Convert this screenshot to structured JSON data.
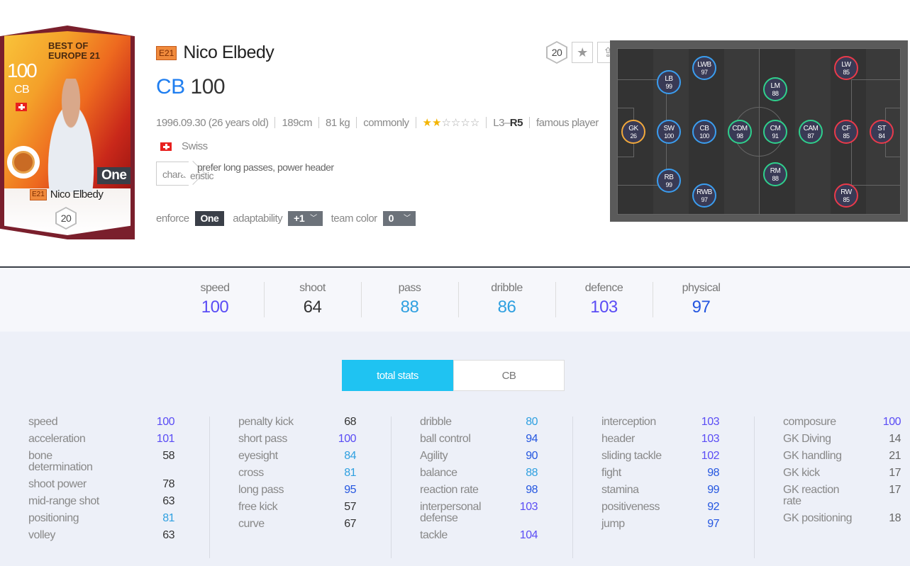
{
  "card": {
    "ovr": "100",
    "position": "CB",
    "title_line1": "BEST OF",
    "title_line2": "EUROPE 21",
    "season_badge": "E21",
    "name": "Nico Elbedy",
    "enforce_badge": "One",
    "level": "20"
  },
  "header": {
    "season_badge": "E21",
    "name": "Nico Elbedy",
    "position": "CB",
    "ovr": "100"
  },
  "tools": {
    "level": "20",
    "favorite_icon": "star-icon",
    "share_icon": "share-icon"
  },
  "meta": {
    "birth": "1996.09.30 (26 years old)",
    "height": "189cm",
    "weight": "81 kg",
    "body_type": "commonly",
    "skill_stars": 2,
    "skill_stars_max": 6,
    "foot_left": "L3",
    "foot_sep": " – ",
    "foot_right": "R5",
    "extra": "famous player"
  },
  "nation": {
    "name": "Swiss"
  },
  "trait": {
    "label": "characteristic",
    "label_line1": "chara",
    "label_line2": "eristic",
    "value": "prefer long passes, power header"
  },
  "options": {
    "enforce_label": "enforce",
    "enforce_value": "One",
    "adapt_label": "adaptability",
    "adapt_value": "+1",
    "teamcolor_label": "team color",
    "teamcolor_value": "0"
  },
  "positions": [
    {
      "pos": "GK",
      "val": "26",
      "group": "gk"
    },
    {
      "pos": "SW",
      "val": "100",
      "group": "def"
    },
    {
      "pos": "LB",
      "val": "99",
      "group": "def"
    },
    {
      "pos": "RB",
      "val": "99",
      "group": "def"
    },
    {
      "pos": "LWB",
      "val": "97",
      "group": "def"
    },
    {
      "pos": "CB",
      "val": "100",
      "group": "def"
    },
    {
      "pos": "RWB",
      "val": "97",
      "group": "def"
    },
    {
      "pos": "CDM",
      "val": "98",
      "group": "mid"
    },
    {
      "pos": "LM",
      "val": "88",
      "group": "mid"
    },
    {
      "pos": "CM",
      "val": "91",
      "group": "mid"
    },
    {
      "pos": "RM",
      "val": "88",
      "group": "mid"
    },
    {
      "pos": "CAM",
      "val": "87",
      "group": "mid"
    },
    {
      "pos": "LW",
      "val": "85",
      "group": "fwd"
    },
    {
      "pos": "CF",
      "val": "85",
      "group": "fwd"
    },
    {
      "pos": "RW",
      "val": "85",
      "group": "fwd"
    },
    {
      "pos": "ST",
      "val": "84",
      "group": "fwd"
    }
  ],
  "group_colors": {
    "gk": "#f2a93b",
    "def": "#3a9ef0",
    "mid": "#2fd08c",
    "fwd": "#ea3a4a"
  },
  "summary": [
    {
      "label": "speed",
      "value": "100"
    },
    {
      "label": "shoot",
      "value": "64"
    },
    {
      "label": "pass",
      "value": "88"
    },
    {
      "label": "dribble",
      "value": "86"
    },
    {
      "label": "defence",
      "value": "103"
    },
    {
      "label": "physical",
      "value": "97"
    }
  ],
  "tabs": [
    {
      "label": "total stats",
      "active": true
    },
    {
      "label": "CB",
      "active": false
    }
  ],
  "stat_colors": {
    "over100": "#5a4cf5",
    "ninety": "#2456e0",
    "eighty": "#2fa0e0",
    "normal": "#333333",
    "gk": "#666666"
  },
  "stats": [
    [
      {
        "name": "speed",
        "value": "100"
      },
      {
        "name": "acceleration",
        "value": "101"
      },
      {
        "name": "bone determination",
        "value": "58"
      },
      {
        "name": "shoot power",
        "value": "78"
      },
      {
        "name": "mid-range shot",
        "value": "63"
      },
      {
        "name": "positioning",
        "value": "81"
      },
      {
        "name": "volley",
        "value": "63"
      }
    ],
    [
      {
        "name": "penalty kick",
        "value": "68"
      },
      {
        "name": "short pass",
        "value": "100"
      },
      {
        "name": "eyesight",
        "value": "84"
      },
      {
        "name": "cross",
        "value": "81"
      },
      {
        "name": "long pass",
        "value": "95"
      },
      {
        "name": "free kick",
        "value": "57"
      },
      {
        "name": "curve",
        "value": "67"
      }
    ],
    [
      {
        "name": "dribble",
        "value": "80"
      },
      {
        "name": "ball control",
        "value": "94"
      },
      {
        "name": "Agility",
        "value": "90"
      },
      {
        "name": "balance",
        "value": "88"
      },
      {
        "name": "reaction rate",
        "value": "98"
      },
      {
        "name": "interpersonal defense",
        "value": "103"
      },
      {
        "name": "tackle",
        "value": "104"
      }
    ],
    [
      {
        "name": "interception",
        "value": "103"
      },
      {
        "name": "header",
        "value": "103"
      },
      {
        "name": "sliding tackle",
        "value": "102"
      },
      {
        "name": "fight",
        "value": "98"
      },
      {
        "name": "stamina",
        "value": "99"
      },
      {
        "name": "positiveness",
        "value": "92"
      },
      {
        "name": "jump",
        "value": "97"
      }
    ],
    [
      {
        "name": "composure",
        "value": "100"
      },
      {
        "name": "GK Diving",
        "value": "14"
      },
      {
        "name": "GK handling",
        "value": "21"
      },
      {
        "name": "GK kick",
        "value": "17"
      },
      {
        "name": "GK reaction rate",
        "value": "17"
      },
      {
        "name": "GK positioning",
        "value": "18"
      }
    ]
  ]
}
